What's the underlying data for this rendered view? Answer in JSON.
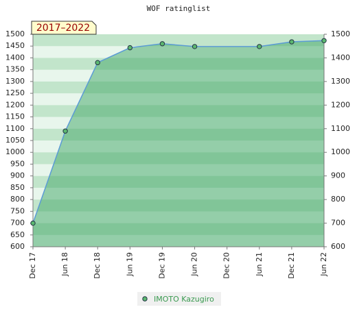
{
  "chart_data": {
    "type": "line",
    "title": "WOF ratinglist",
    "annotation": "2017–2022",
    "x": [
      0,
      6,
      12,
      18,
      24,
      30,
      42,
      48,
      54
    ],
    "series": [
      {
        "name": "IMOTO Kazugiro",
        "color": "#5b9bd5",
        "marker_color": "#5cb870",
        "values": [
          700,
          1090,
          1380,
          1443,
          1460,
          1448,
          1448,
          1468,
          1473
        ]
      }
    ],
    "xlim": [
      0,
      54
    ],
    "xticks": [
      {
        "value": 0,
        "label": "Dec 17"
      },
      {
        "value": 6,
        "label": "Jun 18"
      },
      {
        "value": 12,
        "label": "Dec 18"
      },
      {
        "value": 18,
        "label": "Jun 19"
      },
      {
        "value": 24,
        "label": "Dec 19"
      },
      {
        "value": 30,
        "label": "Jun 20"
      },
      {
        "value": 36,
        "label": "Dec 20"
      },
      {
        "value": 42,
        "label": "Jun 21"
      },
      {
        "value": 48,
        "label": "Dec 21"
      },
      {
        "value": 54,
        "label": "Jun 22"
      }
    ],
    "ylim": [
      600,
      1500
    ],
    "yticks": [
      600,
      650,
      700,
      750,
      800,
      850,
      900,
      950,
      1000,
      1050,
      1100,
      1150,
      1200,
      1250,
      1300,
      1350,
      1400,
      1450,
      1500
    ],
    "y2lim": [
      600,
      1500
    ],
    "y2ticks": [
      600,
      700,
      800,
      900,
      1000,
      1100,
      1200,
      1300,
      1400,
      1500
    ]
  }
}
